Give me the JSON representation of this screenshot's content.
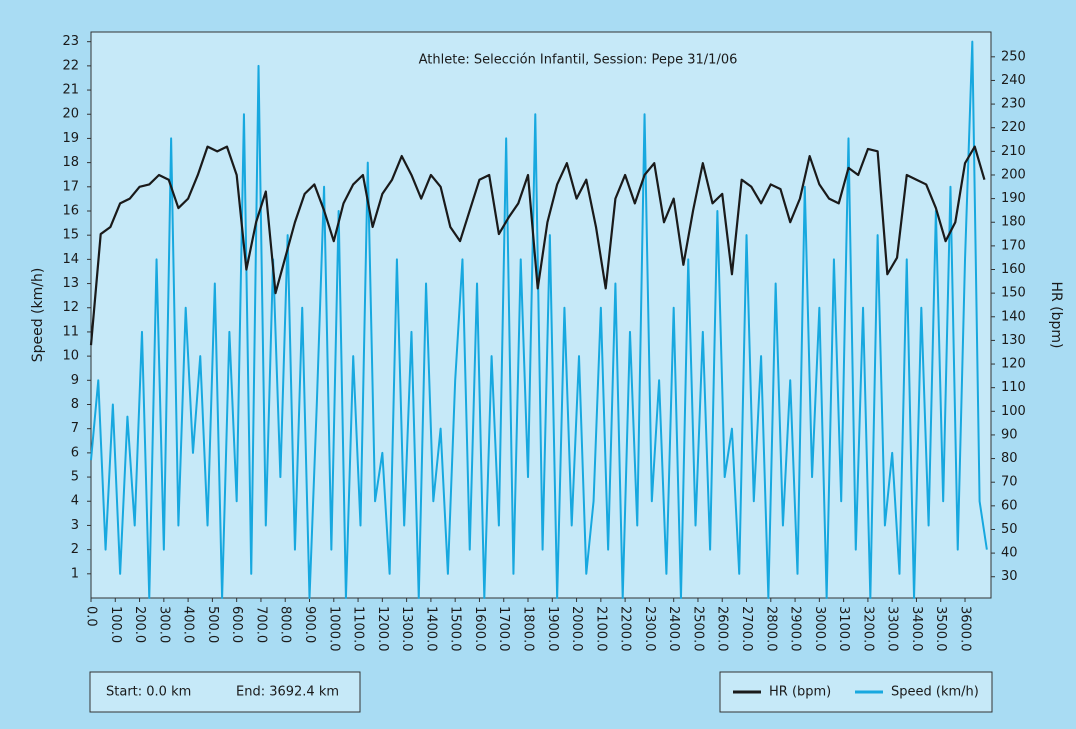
{
  "chart_data": {
    "type": "line",
    "title": "Athlete: Selección Infantil, Session: Pepe 31/1/06",
    "ylabel": "Speed (km/h)",
    "y2label": "HR (bpm)",
    "start_label": "Start: 0.0 km",
    "end_label": "End: 3692.4 km",
    "xlim": [
      0,
      3707
    ],
    "ylim": [
      0,
      23.4
    ],
    "y2lim": [
      21,
      260.5
    ],
    "xticks": [
      {
        "value": 0,
        "label": "0.0"
      },
      {
        "value": 100,
        "label": "100.0"
      },
      {
        "value": 200,
        "label": "200.0"
      },
      {
        "value": 300,
        "label": "300.0"
      },
      {
        "value": 400,
        "label": "400.0"
      },
      {
        "value": 500,
        "label": "500.0"
      },
      {
        "value": 600,
        "label": "600.0"
      },
      {
        "value": 700,
        "label": "700.0"
      },
      {
        "value": 800,
        "label": "800.0"
      },
      {
        "value": 900,
        "label": "900.0"
      },
      {
        "value": 1000,
        "label": "1000.0"
      },
      {
        "value": 1100,
        "label": "1100.0"
      },
      {
        "value": 1200,
        "label": "1200.0"
      },
      {
        "value": 1300,
        "label": "1300.0"
      },
      {
        "value": 1400,
        "label": "1400.0"
      },
      {
        "value": 1500,
        "label": "1500.0"
      },
      {
        "value": 1600,
        "label": "1600.0"
      },
      {
        "value": 1700,
        "label": "1700.0"
      },
      {
        "value": 1800,
        "label": "1800.0"
      },
      {
        "value": 1900,
        "label": "1900.0"
      },
      {
        "value": 2000,
        "label": "2000.0"
      },
      {
        "value": 2100,
        "label": "2100.0"
      },
      {
        "value": 2200,
        "label": "2200.0"
      },
      {
        "value": 2300,
        "label": "2300.0"
      },
      {
        "value": 2400,
        "label": "2400.0"
      },
      {
        "value": 2500,
        "label": "2500.0"
      },
      {
        "value": 2600,
        "label": "2600.0"
      },
      {
        "value": 2700,
        "label": "2700.0"
      },
      {
        "value": 2800,
        "label": "2800.0"
      },
      {
        "value": 2900,
        "label": "2900.0"
      },
      {
        "value": 3000,
        "label": "3000.0"
      },
      {
        "value": 3100,
        "label": "3100.0"
      },
      {
        "value": 3200,
        "label": "3200.0"
      },
      {
        "value": 3300,
        "label": "3300.0"
      },
      {
        "value": 3400,
        "label": "3400.0"
      },
      {
        "value": 3500,
        "label": "3500.0"
      },
      {
        "value": 3600,
        "label": "3600.0"
      }
    ],
    "yticks": [
      1,
      2,
      3,
      4,
      5,
      6,
      7,
      8,
      9,
      10,
      11,
      12,
      13,
      14,
      15,
      16,
      17,
      18,
      19,
      20,
      21,
      22,
      23
    ],
    "y2ticks": [
      30,
      40,
      50,
      60,
      70,
      80,
      90,
      100,
      110,
      120,
      130,
      140,
      150,
      160,
      170,
      180,
      190,
      200,
      210,
      220,
      230,
      240,
      250
    ],
    "series": [
      {
        "name": "HR (bpm)",
        "color": "#1a1a1a",
        "axis": "y2",
        "x": [
          0,
          40,
          80,
          120,
          160,
          200,
          240,
          280,
          320,
          360,
          400,
          440,
          480,
          520,
          560,
          600,
          640,
          680,
          720,
          760,
          800,
          840,
          880,
          920,
          960,
          1000,
          1040,
          1080,
          1120,
          1160,
          1200,
          1240,
          1280,
          1320,
          1360,
          1400,
          1440,
          1480,
          1520,
          1560,
          1600,
          1640,
          1680,
          1720,
          1760,
          1800,
          1840,
          1880,
          1920,
          1960,
          2000,
          2040,
          2080,
          2120,
          2160,
          2200,
          2240,
          2280,
          2320,
          2360,
          2400,
          2440,
          2480,
          2520,
          2560,
          2600,
          2640,
          2680,
          2720,
          2760,
          2800,
          2840,
          2880,
          2920,
          2960,
          3000,
          3040,
          3080,
          3120,
          3160,
          3200,
          3240,
          3280,
          3320,
          3360,
          3400,
          3440,
          3480,
          3520,
          3560,
          3600,
          3640,
          3680
        ],
        "values": [
          128,
          175,
          178,
          188,
          190,
          195,
          196,
          200,
          198,
          186,
          190,
          200,
          212,
          210,
          212,
          200,
          160,
          180,
          193,
          150,
          165,
          180,
          192,
          196,
          185,
          172,
          188,
          196,
          200,
          178,
          192,
          198,
          208,
          200,
          190,
          200,
          195,
          178,
          172,
          185,
          198,
          200,
          175,
          182,
          188,
          200,
          152,
          180,
          196,
          205,
          190,
          198,
          178,
          152,
          190,
          200,
          188,
          200,
          205,
          180,
          190,
          162,
          185,
          205,
          188,
          192,
          158,
          198,
          195,
          188,
          196,
          194,
          180,
          190,
          208,
          196,
          190,
          188,
          203,
          200,
          211,
          210,
          158,
          165,
          200,
          198,
          196,
          186,
          172,
          180,
          205,
          212,
          198
        ]
      },
      {
        "name": "Speed (km/h)",
        "color": "#17a8df",
        "axis": "y",
        "x": [
          0,
          30,
          60,
          90,
          120,
          150,
          180,
          210,
          240,
          270,
          300,
          330,
          360,
          390,
          420,
          450,
          480,
          510,
          540,
          570,
          600,
          630,
          660,
          690,
          720,
          750,
          780,
          810,
          840,
          870,
          900,
          930,
          960,
          990,
          1020,
          1050,
          1080,
          1110,
          1140,
          1170,
          1200,
          1230,
          1260,
          1290,
          1320,
          1350,
          1380,
          1410,
          1440,
          1470,
          1500,
          1530,
          1560,
          1590,
          1620,
          1650,
          1680,
          1710,
          1740,
          1770,
          1800,
          1830,
          1860,
          1890,
          1920,
          1950,
          1980,
          2010,
          2040,
          2070,
          2100,
          2130,
          2160,
          2190,
          2220,
          2250,
          2280,
          2310,
          2340,
          2370,
          2400,
          2430,
          2460,
          2490,
          2520,
          2550,
          2580,
          2610,
          2640,
          2670,
          2700,
          2730,
          2760,
          2790,
          2820,
          2850,
          2880,
          2910,
          2940,
          2970,
          3000,
          3030,
          3060,
          3090,
          3120,
          3150,
          3180,
          3210,
          3240,
          3270,
          3300,
          3330,
          3360,
          3390,
          3420,
          3450,
          3480,
          3510,
          3540,
          3570,
          3600,
          3630,
          3660,
          3690
        ],
        "values": [
          5.7,
          9,
          2,
          8,
          1,
          7.5,
          3,
          11,
          0,
          14,
          2,
          19,
          3,
          12,
          6,
          10,
          3,
          13,
          0,
          11,
          4,
          20,
          1,
          22,
          3,
          14,
          5,
          15,
          2,
          12,
          0,
          8,
          17,
          2,
          16,
          0,
          10,
          3,
          18,
          4,
          6,
          1,
          14,
          3,
          11,
          0,
          13,
          4,
          7,
          1,
          9,
          14,
          2,
          13,
          0,
          10,
          3,
          19,
          1,
          14,
          5,
          20,
          2,
          15,
          0,
          12,
          3,
          10,
          1,
          4,
          12,
          2,
          13,
          0,
          11,
          3,
          20,
          4,
          9,
          1,
          12,
          0,
          14,
          3,
          11,
          2,
          16,
          5,
          7,
          1,
          15,
          4,
          10,
          0,
          13,
          3,
          9,
          1,
          17,
          5,
          12,
          0,
          14,
          4,
          19,
          2,
          12,
          0,
          15,
          3,
          6,
          1,
          14,
          0,
          12,
          3,
          16,
          4,
          17,
          2,
          14,
          23,
          4,
          2
        ]
      }
    ]
  }
}
